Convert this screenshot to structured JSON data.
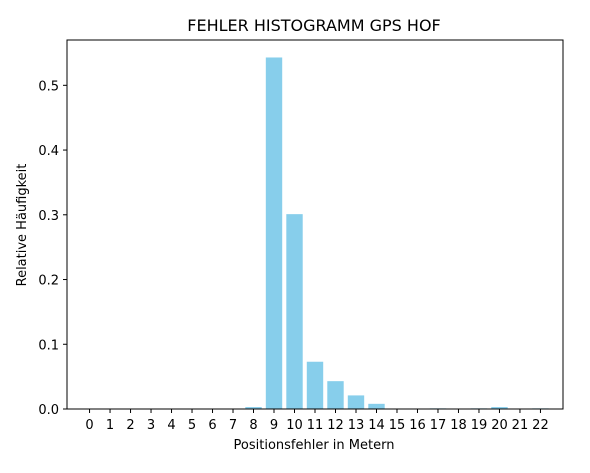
{
  "chart_data": {
    "type": "bar",
    "title": "FEHLER HISTOGRAMM GPS HOF",
    "xlabel": "Positionsfehler in Metern",
    "ylabel": "Relative Häufigkeit",
    "categories": [
      "0",
      "1",
      "2",
      "3",
      "4",
      "5",
      "6",
      "7",
      "8",
      "9",
      "10",
      "11",
      "12",
      "13",
      "14",
      "15",
      "16",
      "17",
      "18",
      "19",
      "20",
      "21",
      "22"
    ],
    "values": [
      0,
      0,
      0,
      0,
      0,
      0,
      0,
      0,
      0.003,
      0.543,
      0.301,
      0.073,
      0.043,
      0.021,
      0.008,
      0,
      0,
      0.001,
      0,
      0.001,
      0.003,
      0,
      0.001
    ],
    "ylim": [
      0,
      0.57
    ],
    "yticks": [
      0.0,
      0.1,
      0.2,
      0.3,
      0.4,
      0.5
    ],
    "ytick_labels": [
      "0.0",
      "0.1",
      "0.2",
      "0.3",
      "0.4",
      "0.5"
    ],
    "grid": false,
    "legend": "none",
    "bar_color": "#87CEEB"
  }
}
